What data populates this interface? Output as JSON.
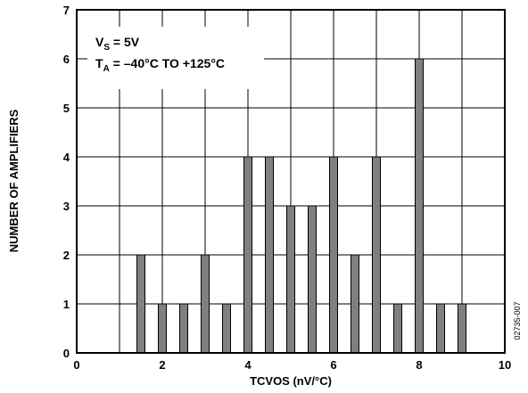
{
  "chart_data": {
    "type": "bar",
    "xlabel": "TCVOS (nV/°C)",
    "ylabel": "NUMBER OF AMPLIFIERS",
    "xlim": [
      0,
      10
    ],
    "ylim": [
      0,
      7
    ],
    "xticks": [
      "0",
      "2",
      "4",
      "6",
      "8",
      "10"
    ],
    "yticks": [
      "0",
      "1",
      "2",
      "3",
      "4",
      "5",
      "6",
      "7"
    ],
    "grid": true,
    "bar_color": "#808080",
    "x": [
      1.5,
      2.0,
      2.5,
      3.0,
      3.5,
      4.0,
      4.5,
      5.0,
      5.5,
      6.0,
      6.5,
      7.0,
      7.5,
      8.0,
      8.5,
      9.0
    ],
    "values": [
      2,
      1,
      1,
      2,
      1,
      4,
      4,
      3,
      3,
      4,
      2,
      4,
      1,
      6,
      1,
      1
    ],
    "annotation": {
      "vs_main": "V",
      "vs_sub": "S",
      "vs_rest": " = 5V",
      "ta_main": "T",
      "ta_sub": "A",
      "ta_rest": " = –40°C TO +125°C"
    },
    "figure_id": "02735-007"
  }
}
